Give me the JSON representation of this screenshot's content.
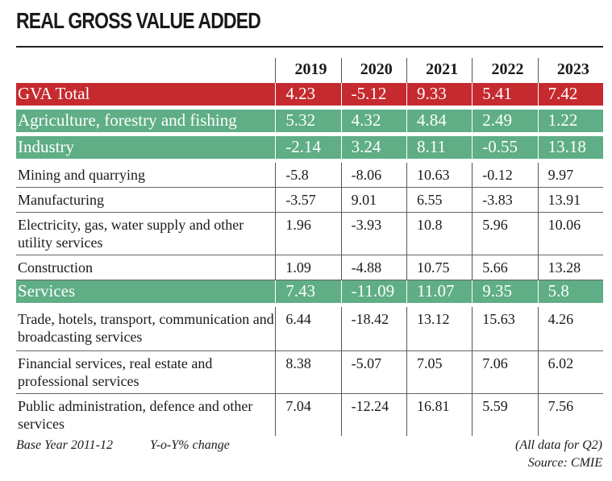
{
  "title": "REAL GROSS VALUE ADDED",
  "colors": {
    "highlight_total": "#c52a2f",
    "highlight_sector": "#5fae86"
  },
  "chart_data": {
    "type": "table",
    "title": "REAL GROSS VALUE ADDED",
    "columns": [
      "2019",
      "2020",
      "2021",
      "2022",
      "2023"
    ],
    "rows": [
      {
        "label": "GVA Total",
        "style": "red",
        "values": [
          "4.23",
          "-5.12",
          "9.33",
          "5.41",
          "7.42"
        ]
      },
      {
        "label": "Agriculture, forestry and fishing",
        "style": "green",
        "values": [
          "5.32",
          "4.32",
          "4.84",
          "2.49",
          "1.22"
        ]
      },
      {
        "label": "Industry",
        "style": "green",
        "values": [
          "-2.14",
          "3.24",
          "8.11",
          "-0.55",
          "13.18"
        ]
      },
      {
        "label": "Mining and quarrying",
        "style": "normal",
        "values": [
          "-5.8",
          "-8.06",
          "10.63",
          "-0.12",
          "9.97"
        ]
      },
      {
        "label": "Manufacturing",
        "style": "normal",
        "values": [
          "-3.57",
          "9.01",
          "6.55",
          "-3.83",
          "13.91"
        ]
      },
      {
        "label": "Electricity, gas, water supply and other utility services",
        "style": "normal",
        "values": [
          "1.96",
          "-3.93",
          "10.8",
          "5.96",
          "10.06"
        ]
      },
      {
        "label": "Construction",
        "style": "normal",
        "values": [
          "1.09",
          "-4.88",
          "10.75",
          "5.66",
          "13.28"
        ]
      },
      {
        "label": "Services",
        "style": "green",
        "values": [
          "7.43",
          "-11.09",
          "11.07",
          "9.35",
          "5.8"
        ]
      },
      {
        "label": "Trade, hotels, transport, communication and broadcasting services",
        "style": "normal",
        "values": [
          "6.44",
          "-18.42",
          "13.12",
          "15.63",
          "4.26"
        ]
      },
      {
        "label": "Financial services, real estate and professional services",
        "style": "normal",
        "values": [
          "8.38",
          "-5.07",
          "7.05",
          "7.06",
          "6.02"
        ]
      },
      {
        "label": "Public administration, defence and other services",
        "style": "normal",
        "values": [
          "7.04",
          "-12.24",
          "16.81",
          "5.59",
          "7.56"
        ]
      }
    ]
  },
  "footer": {
    "base_year": "Base Year 2011-12",
    "unit": "Y-o-Y% change",
    "note": "(All data for Q2)",
    "source": "Source: CMIE"
  }
}
